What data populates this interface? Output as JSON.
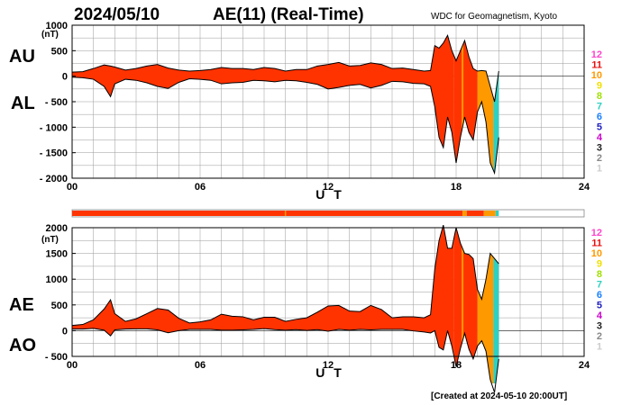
{
  "header": {
    "date": "2024/05/10",
    "title": "AE(11) (Real-Time)",
    "credit": "WDC for Geomagnetism, Kyoto"
  },
  "footer": {
    "created": "[Created at 2024-05-10 20:00UT]"
  },
  "legend": {
    "items": [
      {
        "label": "12",
        "color": "#ff44cc"
      },
      {
        "label": "11",
        "color": "#e81010"
      },
      {
        "label": "10",
        "color": "#ff9900"
      },
      {
        "label": "9",
        "color": "#f0e000"
      },
      {
        "label": "8",
        "color": "#a0e000"
      },
      {
        "label": "7",
        "color": "#30d0c0"
      },
      {
        "label": "6",
        "color": "#1a80ff"
      },
      {
        "label": "5",
        "color": "#2020c0"
      },
      {
        "label": "4",
        "color": "#cc00cc"
      },
      {
        "label": "3",
        "color": "#222222"
      },
      {
        "label": "2",
        "color": "#888888"
      },
      {
        "label": "1",
        "color": "#cccccc"
      }
    ]
  },
  "chart_data": [
    {
      "type": "area",
      "panel": "AU/AL",
      "series_labels": [
        "AU",
        "AL"
      ],
      "unit": "(nT)",
      "xlabel": "U T",
      "xlim": [
        0,
        24
      ],
      "x_ticks": [
        "00",
        "06",
        "12",
        "18",
        "24"
      ],
      "ylim": [
        -2000,
        1000
      ],
      "y_ticks": [
        "1000",
        "500",
        "0",
        "- 500",
        "- 1000",
        "- 1500",
        "- 2000"
      ],
      "grid": true,
      "x": [
        0,
        0.5,
        1,
        1.5,
        1.8,
        2,
        2.5,
        3,
        3.5,
        4,
        4.5,
        5,
        5.5,
        6,
        6.5,
        7,
        7.5,
        8,
        8.5,
        9,
        9.5,
        10,
        10.5,
        11,
        11.5,
        12,
        12.5,
        13,
        13.5,
        14,
        14.5,
        15,
        15.5,
        16,
        16.5,
        16.8,
        17,
        17.2,
        17.4,
        17.6,
        17.8,
        18,
        18.2,
        18.4,
        18.6,
        18.8,
        19,
        19.2,
        19.4,
        19.6,
        19.8,
        20
      ],
      "AU": [
        80,
        90,
        150,
        220,
        200,
        180,
        120,
        150,
        200,
        230,
        160,
        120,
        100,
        110,
        130,
        170,
        150,
        150,
        130,
        170,
        150,
        100,
        130,
        130,
        200,
        230,
        270,
        200,
        210,
        260,
        230,
        150,
        160,
        130,
        100,
        110,
        600,
        550,
        650,
        800,
        500,
        300,
        500,
        700,
        380,
        150,
        100,
        110,
        100,
        -200,
        -500,
        100
      ],
      "AL": [
        -20,
        -30,
        -60,
        -200,
        -400,
        -150,
        -60,
        -80,
        -130,
        -200,
        -240,
        -120,
        -50,
        -60,
        -80,
        -150,
        -130,
        -120,
        -80,
        -90,
        -110,
        -80,
        -90,
        -120,
        -160,
        -250,
        -220,
        -180,
        -160,
        -230,
        -180,
        -100,
        -110,
        -140,
        -150,
        -200,
        -600,
        -1200,
        -1400,
        -800,
        -1100,
        -1700,
        -1200,
        -800,
        -1100,
        -1250,
        -700,
        -500,
        -900,
        -1700,
        -1900,
        -1200
      ],
      "activity": [
        {
          "from": 0,
          "to": 18.3,
          "color": "#ff3300"
        },
        {
          "from": 18.3,
          "to": 18.5,
          "color": "#ff9900"
        },
        {
          "from": 18.5,
          "to": 19.3,
          "color": "#ff3300"
        },
        {
          "from": 19.3,
          "to": 19.85,
          "color": "#ff9900"
        },
        {
          "from": 19.85,
          "to": 20.0,
          "color": "#30d0c0"
        }
      ]
    },
    {
      "type": "area",
      "panel": "AE/AO",
      "series_labels": [
        "AE",
        "AO"
      ],
      "unit": "(nT)",
      "xlabel": "U T",
      "xlim": [
        0,
        24
      ],
      "x_ticks": [
        "00",
        "06",
        "12",
        "18",
        "24"
      ],
      "ylim": [
        -500,
        2000
      ],
      "y_ticks": [
        "2000",
        "1500",
        "1000",
        "500",
        "0",
        "- 500"
      ],
      "grid": true,
      "x": [
        0,
        0.5,
        1,
        1.5,
        1.8,
        2,
        2.5,
        3,
        3.5,
        4,
        4.5,
        5,
        5.5,
        6,
        6.5,
        7,
        7.5,
        8,
        8.5,
        9,
        9.5,
        10,
        10.5,
        11,
        11.5,
        12,
        12.5,
        13,
        13.5,
        14,
        14.5,
        15,
        15.5,
        16,
        16.5,
        16.8,
        17,
        17.2,
        17.4,
        17.6,
        17.8,
        18,
        18.2,
        18.4,
        18.6,
        18.8,
        19,
        19.2,
        19.4,
        19.6,
        19.8,
        20
      ],
      "AE": [
        100,
        120,
        210,
        420,
        600,
        330,
        180,
        230,
        330,
        430,
        400,
        240,
        150,
        170,
        210,
        320,
        280,
        270,
        210,
        260,
        260,
        180,
        220,
        250,
        360,
        480,
        490,
        380,
        370,
        490,
        410,
        250,
        270,
        270,
        250,
        310,
        1200,
        1750,
        2050,
        1600,
        1600,
        2000,
        1700,
        1500,
        1480,
        1400,
        800,
        610,
        1000,
        1500,
        1400,
        1300
      ],
      "AO": [
        30,
        30,
        45,
        10,
        -100,
        15,
        30,
        35,
        35,
        15,
        -40,
        0,
        25,
        25,
        25,
        10,
        10,
        15,
        25,
        40,
        20,
        10,
        20,
        5,
        20,
        -10,
        25,
        10,
        25,
        15,
        25,
        25,
        25,
        -5,
        -25,
        -45,
        0,
        -325,
        -375,
        0,
        -300,
        -700,
        -350,
        -50,
        -360,
        -550,
        -300,
        -195,
        -400,
        -950,
        -1200,
        -550
      ],
      "activity": []
    }
  ]
}
